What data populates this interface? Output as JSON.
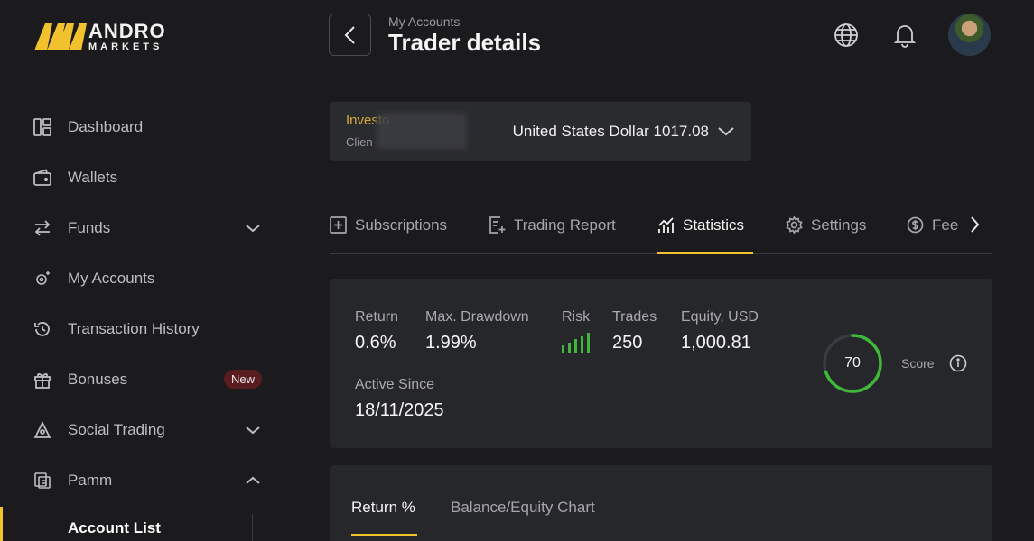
{
  "brand": {
    "line1": "ANDRO",
    "line2": "MARKETS",
    "accent": "#f2c12e"
  },
  "sidebar": {
    "items": [
      {
        "label": "Dashboard",
        "icon": "dashboard-icon"
      },
      {
        "label": "Wallets",
        "icon": "wallet-icon"
      },
      {
        "label": "Funds",
        "icon": "transfer-icon"
      },
      {
        "label": "My Accounts",
        "icon": "accounts-icon"
      },
      {
        "label": "Transaction History",
        "icon": "history-icon"
      },
      {
        "label": "Bonuses",
        "icon": "gift-icon",
        "badge": "New"
      },
      {
        "label": "Social Trading",
        "icon": "social-trading-icon"
      },
      {
        "label": "Pamm",
        "icon": "pamm-icon"
      }
    ],
    "sub_item": "Account List"
  },
  "header": {
    "breadcrumb": "My Accounts",
    "title": "Trader details"
  },
  "account_selector": {
    "type_label": "Investo",
    "client_label": "Clien",
    "value": "United States Dollar 1017.08"
  },
  "tabs": [
    {
      "label": "Subscriptions",
      "icon": "plus-square-icon"
    },
    {
      "label": "Trading Report",
      "icon": "report-icon"
    },
    {
      "label": "Statistics",
      "icon": "chart-icon",
      "active": true
    },
    {
      "label": "Settings",
      "icon": "gear-icon"
    },
    {
      "label": "Fee",
      "icon": "dollar-circle-icon"
    }
  ],
  "stats": {
    "return": {
      "label": "Return",
      "value": "0.6%"
    },
    "max_drawdown": {
      "label": "Max. Drawdown",
      "value": "1.99%"
    },
    "risk": {
      "label": "Risk",
      "level": 5,
      "max": 5,
      "color": "#3fb83a"
    },
    "trades": {
      "label": "Trades",
      "value": "250"
    },
    "equity": {
      "label": "Equity, USD",
      "value": "1,000.81"
    },
    "active_since": {
      "label": "Active Since",
      "value": "18/11/2025"
    },
    "score": {
      "value": "70",
      "label": "Score",
      "fraction": 0.7,
      "color": "#3fb83a"
    }
  },
  "chart_tabs": [
    {
      "label": "Return %",
      "active": true
    },
    {
      "label": "Balance/Equity Chart"
    }
  ]
}
